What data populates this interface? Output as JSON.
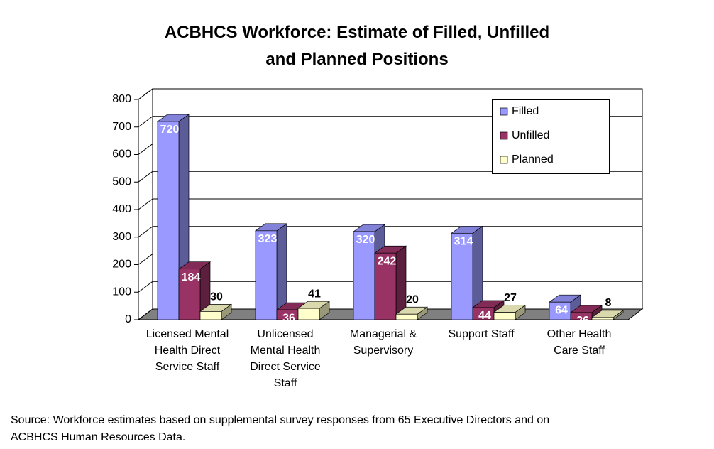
{
  "chart_data": {
    "type": "bar3d",
    "title": "ACBHCS Workforce: Estimate of Filled, Unfilled and Planned Positions",
    "categories": [
      "Licensed Mental Health Direct Service Staff",
      "Unlicensed Mental Health Direct Service Staff",
      "Managerial & Supervisory",
      "Support Staff",
      "Other Health Care Staff"
    ],
    "series": [
      {
        "name": "Filled",
        "color": "#9999ff",
        "values": [
          720,
          323,
          320,
          314,
          64
        ]
      },
      {
        "name": "Unfilled",
        "color": "#993366",
        "values": [
          184,
          36,
          242,
          44,
          26
        ]
      },
      {
        "name": "Planned",
        "color": "#ffffcc",
        "values": [
          30,
          41,
          20,
          27,
          8
        ]
      }
    ],
    "ylim": [
      0,
      800
    ],
    "yticks": [
      0,
      100,
      200,
      300,
      400,
      500,
      600,
      700,
      800
    ],
    "grid": true,
    "legend": "top-right",
    "source": "Source:  Workforce estimates based on supplemental survey responses from 65 Executive Directors and on ACBHCS Human Resources Data."
  }
}
